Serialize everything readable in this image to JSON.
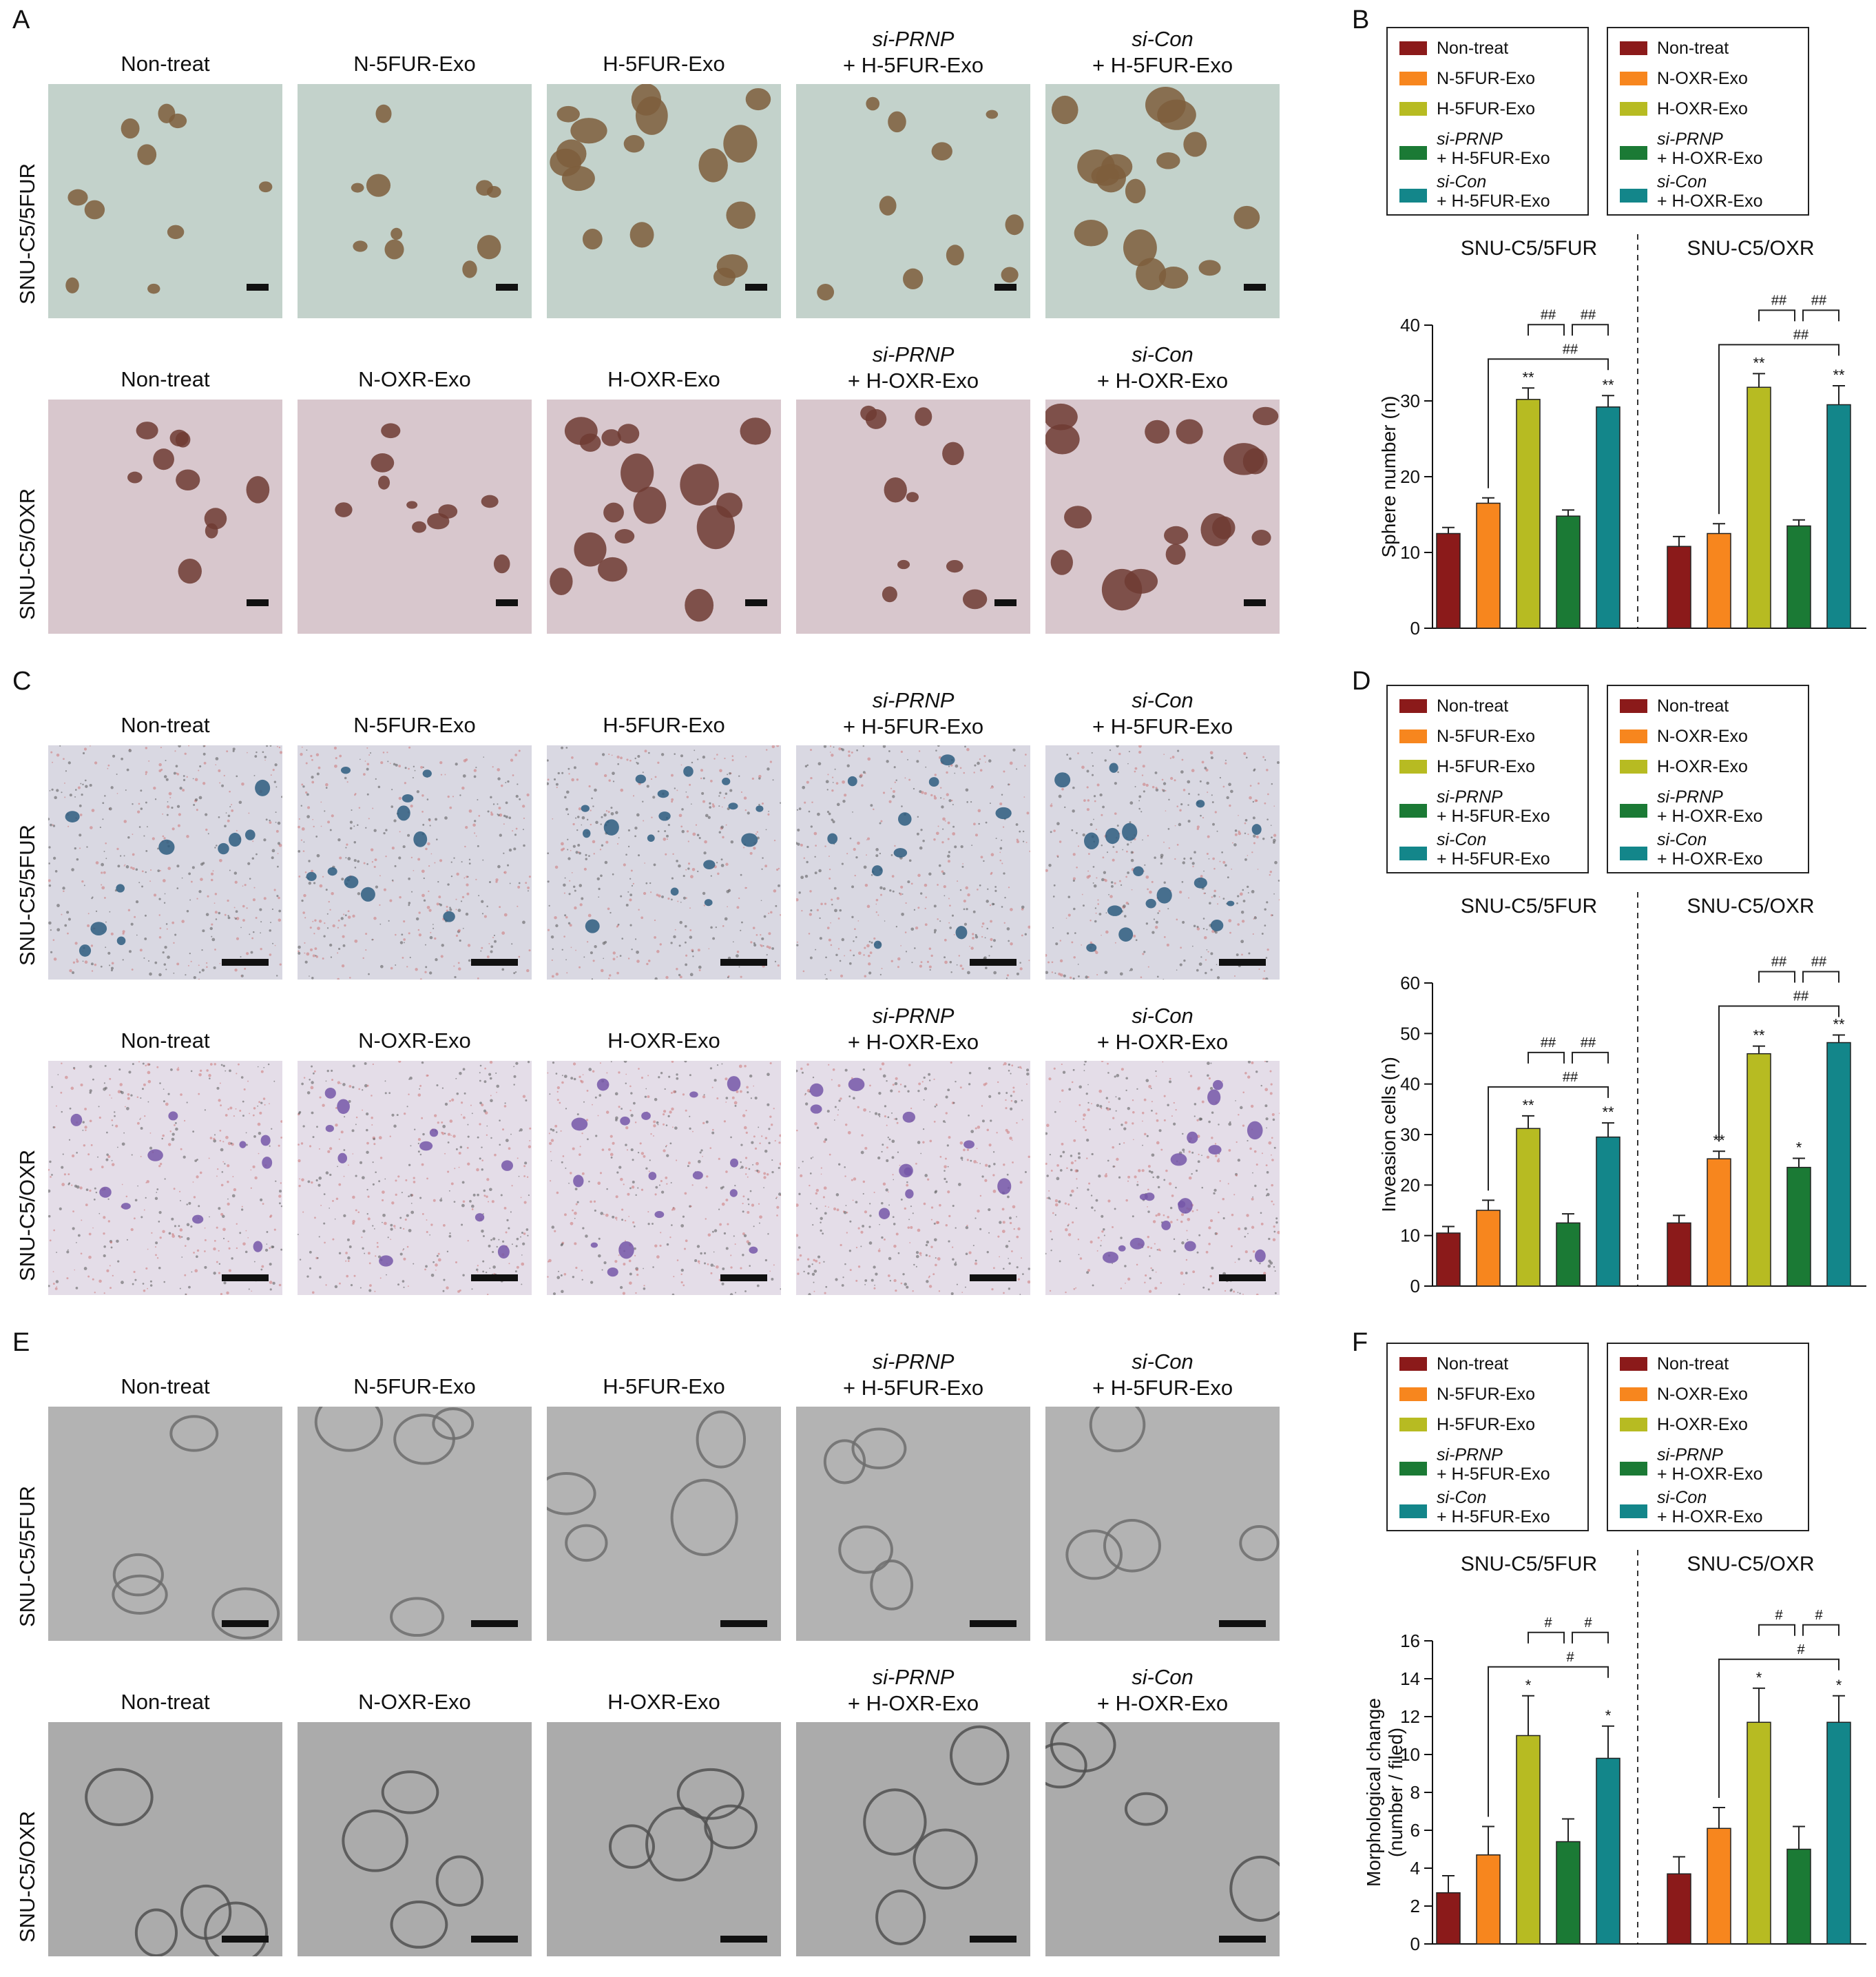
{
  "panel_letters": [
    "A",
    "B",
    "C",
    "D",
    "E",
    "F"
  ],
  "rows": {
    "fur": {
      "label": "SNU-C5/5FUR",
      "titles": [
        {
          "italic": "",
          "text": "Non-treat"
        },
        {
          "italic": "",
          "text": "N-5FUR-Exo"
        },
        {
          "italic": "",
          "text": "H-5FUR-Exo"
        },
        {
          "italic": "si-PRNP",
          "text": "+ H-5FUR-Exo"
        },
        {
          "italic": "si-Con",
          "text": "+ H-5FUR-Exo"
        }
      ]
    },
    "oxr": {
      "label": "SNU-C5/OXR",
      "titles": [
        {
          "italic": "",
          "text": "Non-treat"
        },
        {
          "italic": "",
          "text": "N-OXR-Exo"
        },
        {
          "italic": "",
          "text": "H-OXR-Exo"
        },
        {
          "italic": "si-PRNP",
          "text": "+ H-OXR-Exo"
        },
        {
          "italic": "si-Con",
          "text": "+ H-OXR-Exo"
        }
      ]
    }
  },
  "legends": {
    "fur": [
      {
        "italic": "",
        "text": "Non-treat",
        "color": "#8b1a1a"
      },
      {
        "italic": "",
        "text": "N-5FUR-Exo",
        "color": "#f7861e"
      },
      {
        "italic": "",
        "text": "H-5FUR-Exo",
        "color": "#b7bb22"
      },
      {
        "italic": "si-PRNP",
        "text": "+ H-5FUR-Exo",
        "color": "#1b7a35"
      },
      {
        "italic": "si-Con",
        "text": "+ H-5FUR-Exo",
        "color": "#13868a"
      }
    ],
    "oxr": [
      {
        "italic": "",
        "text": "Non-treat",
        "color": "#8b1a1a"
      },
      {
        "italic": "",
        "text": "N-OXR-Exo",
        "color": "#f7861e"
      },
      {
        "italic": "",
        "text": "H-OXR-Exo",
        "color": "#b7bb22"
      },
      {
        "italic": "si-PRNP",
        "text": "+ H-OXR-Exo",
        "color": "#1b7a35"
      },
      {
        "italic": "si-Con",
        "text": "+ H-OXR-Exo",
        "color": "#13868a"
      }
    ]
  },
  "photo_styles": {
    "A": {
      "fur_bg": "#c3d2cb",
      "oxr_bg": "#d8c7cd",
      "fur_blob": "#7e5e3c",
      "oxr_blob": "#6e3b33"
    },
    "C": {
      "fur_bg": "#d9d8e2",
      "oxr_bg": "#e4dde8",
      "fur_blob": "#2d5d7f",
      "oxr_blob": "#7557a8"
    },
    "E": {
      "fur_bg": "#b3b3b3",
      "oxr_bg": "#ababab",
      "fur_blob": "#6d6d6d",
      "oxr_blob": "#505050"
    }
  },
  "chart_data": [
    {
      "panel": "B",
      "type": "bar",
      "ylabel": "Sphere number (n)",
      "ylim": [
        0,
        40
      ],
      "yticks": [
        0,
        10,
        20,
        30,
        40
      ],
      "groups": [
        {
          "name": "SNU-C5/5FUR",
          "values": [
            12.5,
            16.5,
            30.2,
            14.8,
            29.2
          ],
          "errors": [
            0.8,
            0.7,
            1.5,
            0.8,
            1.5
          ],
          "marks": [
            "",
            "",
            "**",
            "",
            "**"
          ]
        },
        {
          "name": "SNU-C5/OXR",
          "values": [
            10.8,
            12.5,
            31.8,
            13.5,
            29.5
          ],
          "errors": [
            1.3,
            1.3,
            1.8,
            0.8,
            2.5
          ],
          "marks": [
            "",
            "",
            "**",
            "",
            "**"
          ]
        }
      ],
      "brackets": [
        "##",
        "##",
        "##"
      ]
    },
    {
      "panel": "D",
      "type": "bar",
      "ylabel": "Inveasion cells (n)",
      "ylim": [
        0,
        60
      ],
      "yticks": [
        0,
        10,
        20,
        30,
        40,
        50,
        60
      ],
      "groups": [
        {
          "name": "SNU-C5/5FUR",
          "values": [
            10.5,
            15.0,
            31.2,
            12.5,
            29.5
          ],
          "errors": [
            1.3,
            2.0,
            2.5,
            1.8,
            2.8
          ],
          "marks": [
            "",
            "",
            "**",
            "",
            "**"
          ]
        },
        {
          "name": "SNU-C5/OXR",
          "values": [
            12.5,
            25.2,
            46.0,
            23.5,
            48.2
          ],
          "errors": [
            1.5,
            1.5,
            1.5,
            1.8,
            1.5
          ],
          "marks": [
            "",
            "**",
            "**",
            "*",
            "**"
          ]
        }
      ],
      "brackets": [
        "##",
        "##",
        "##"
      ]
    },
    {
      "panel": "F",
      "type": "bar",
      "ylabel": "Morphological change",
      "ylabel2": "(number / filed)",
      "ylim": [
        0,
        16
      ],
      "yticks": [
        0,
        2,
        4,
        6,
        8,
        10,
        12,
        14,
        16
      ],
      "groups": [
        {
          "name": "SNU-C5/5FUR",
          "values": [
            2.7,
            4.7,
            11.0,
            5.4,
            9.8
          ],
          "errors": [
            0.9,
            1.5,
            2.1,
            1.2,
            1.7
          ],
          "marks": [
            "",
            "",
            "*",
            "",
            "*"
          ]
        },
        {
          "name": "SNU-C5/OXR",
          "values": [
            3.7,
            6.1,
            11.7,
            5.0,
            11.7
          ],
          "errors": [
            0.9,
            1.1,
            1.8,
            1.2,
            1.4
          ],
          "marks": [
            "",
            "",
            "*",
            "",
            "*"
          ]
        }
      ],
      "brackets": [
        "#",
        "#",
        "#"
      ]
    }
  ]
}
